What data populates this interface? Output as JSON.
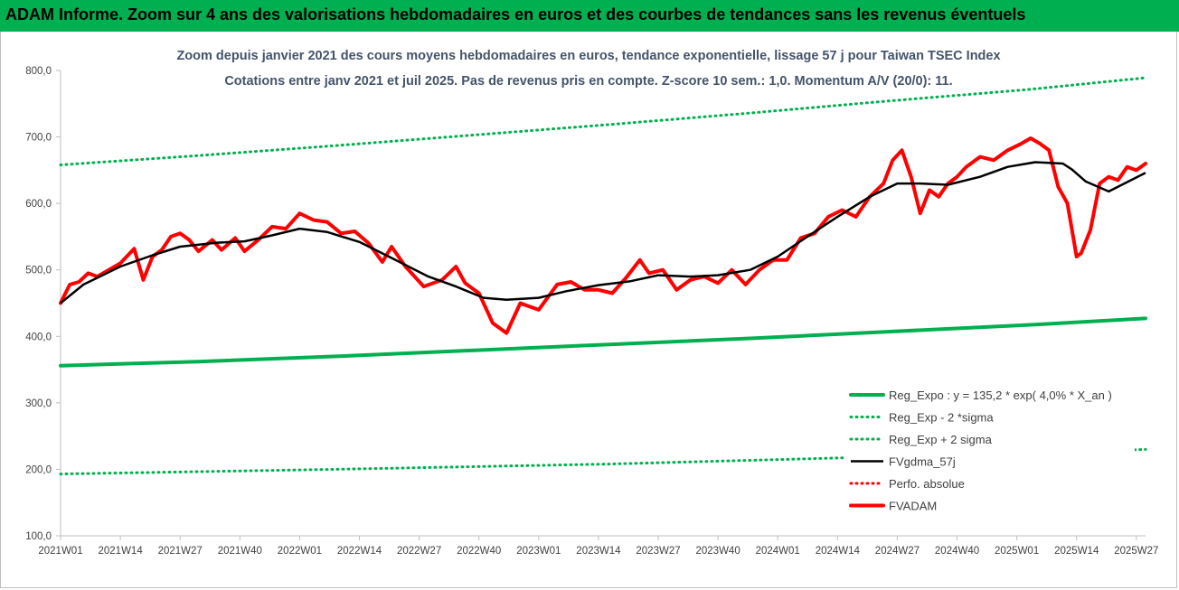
{
  "banner": {
    "title": "ADAM Informe. Zoom sur 4 ans des valorisations hebdomadaires en euros et des courbes de tendances sans les revenus éventuels"
  },
  "chart_data": {
    "type": "line",
    "title_lines": [
      "Zoom depuis janvier 2021 des cours moyens hebdomadaires en euros, tendance exponentielle, lissage 57 j pour Taiwan TSEC Index",
      "Cotations entre janv 2021 et juil 2025. Pas de revenus pris en compte. Z-score 10 sem.: 1,0. Momentum A/V (20/0): 11."
    ],
    "ylim": [
      100,
      800
    ],
    "yticks": [
      100,
      200,
      300,
      400,
      500,
      600,
      700,
      800
    ],
    "ytick_labels": [
      "100,0",
      "200,0",
      "300,0",
      "400,0",
      "500,0",
      "600,0",
      "700,0",
      "800,0"
    ],
    "xlim": [
      0,
      236
    ],
    "xticks": [
      0,
      13,
      26,
      39,
      52,
      65,
      78,
      91,
      104,
      117,
      130,
      143,
      156,
      169,
      182,
      195,
      208,
      221,
      234
    ],
    "xtick_labels": [
      "2021W01",
      "2021W14",
      "2021W27",
      "2021W40",
      "2022W01",
      "2022W14",
      "2022W27",
      "2022W40",
      "2023W01",
      "2023W14",
      "2023W27",
      "2023W40",
      "2024W01",
      "2024W14",
      "2024W27",
      "2024W40",
      "2025W01",
      "2025W14",
      "2025W27"
    ],
    "grid": false,
    "legend_position": "bottom-right",
    "colors": {
      "reg_expo": "#00b050",
      "reg_minus": "#00b050",
      "reg_plus": "#00b050",
      "fvgdma": "#000000",
      "perfo": "#ff0000",
      "fvadam": "#ff0000"
    },
    "series": [
      {
        "key": "reg_expo",
        "name": "Reg_Expo : y = 135,2 * exp( 4,0% *  X_an )",
        "style": "solid-thick",
        "x": [
          0,
          30,
          60,
          90,
          120,
          150,
          180,
          210,
          236
        ],
        "y": [
          356,
          362,
          370,
          379,
          388,
          397,
          407,
          417,
          427
        ]
      },
      {
        "key": "reg_minus",
        "name": "Reg_Exp - 2 *sigma",
        "style": "dotted",
        "x": [
          0,
          60,
          120,
          180,
          236
        ],
        "y": [
          193,
          200,
          208,
          219,
          230
        ]
      },
      {
        "key": "reg_plus",
        "name": "Reg_Exp + 2 sigma",
        "style": "dotted",
        "x": [
          0,
          30,
          60,
          90,
          120,
          150,
          180,
          210,
          236
        ],
        "y": [
          658,
          672,
          687,
          703,
          719,
          736,
          754,
          771,
          789
        ]
      },
      {
        "key": "fvgdma",
        "name": "FVgdma_57j",
        "style": "solid",
        "x": [
          0,
          5,
          13,
          20,
          26,
          34,
          40,
          46,
          52,
          58,
          65,
          72,
          80,
          86,
          92,
          97,
          104,
          110,
          117,
          124,
          130,
          137,
          143,
          150,
          156,
          162,
          169,
          176,
          182,
          187,
          193,
          200,
          206,
          212,
          218,
          220,
          223,
          228,
          236
        ],
        "y": [
          450,
          478,
          505,
          522,
          535,
          541,
          543,
          552,
          562,
          557,
          542,
          518,
          490,
          475,
          458,
          455,
          458,
          468,
          477,
          483,
          492,
          490,
          492,
          500,
          520,
          548,
          580,
          610,
          630,
          630,
          628,
          640,
          655,
          662,
          660,
          651,
          633,
          618,
          646
        ]
      },
      {
        "key": "perfo",
        "name": "Perfo. absolue",
        "style": "dotted-legend-only",
        "x": [],
        "y": []
      },
      {
        "key": "fvadam",
        "name": "FVADAM",
        "style": "solid-thick",
        "x": [
          0,
          2,
          4,
          6,
          8,
          10,
          13,
          16,
          18,
          20,
          22,
          24,
          26,
          28,
          30,
          33,
          35,
          38,
          40,
          43,
          46,
          49,
          52,
          55,
          58,
          61,
          64,
          67,
          70,
          72,
          75,
          79,
          83,
          86,
          88,
          91,
          94,
          97,
          100,
          102,
          104,
          108,
          111,
          114,
          117,
          120,
          123,
          126,
          128,
          131,
          134,
          137,
          140,
          143,
          146,
          149,
          152,
          155,
          158,
          161,
          164,
          167,
          170,
          173,
          176,
          179,
          181,
          183,
          185,
          187,
          189,
          191,
          193,
          195,
          197,
          200,
          203,
          206,
          209,
          211,
          213,
          215,
          217,
          219,
          221,
          222,
          224,
          226,
          228,
          230,
          232,
          234,
          236
        ],
        "y": [
          450,
          478,
          482,
          495,
          490,
          498,
          510,
          532,
          485,
          520,
          530,
          550,
          555,
          545,
          528,
          545,
          530,
          548,
          528,
          545,
          565,
          562,
          585,
          575,
          572,
          555,
          558,
          540,
          512,
          535,
          505,
          475,
          485,
          505,
          480,
          465,
          420,
          405,
          450,
          445,
          440,
          478,
          482,
          470,
          470,
          465,
          488,
          515,
          495,
          500,
          470,
          485,
          490,
          480,
          500,
          478,
          500,
          515,
          515,
          548,
          555,
          580,
          590,
          580,
          610,
          630,
          665,
          680,
          640,
          585,
          620,
          610,
          630,
          640,
          655,
          670,
          665,
          680,
          690,
          698,
          690,
          680,
          625,
          600,
          520,
          525,
          560,
          630,
          640,
          635,
          655,
          650,
          660
        ]
      }
    ]
  }
}
